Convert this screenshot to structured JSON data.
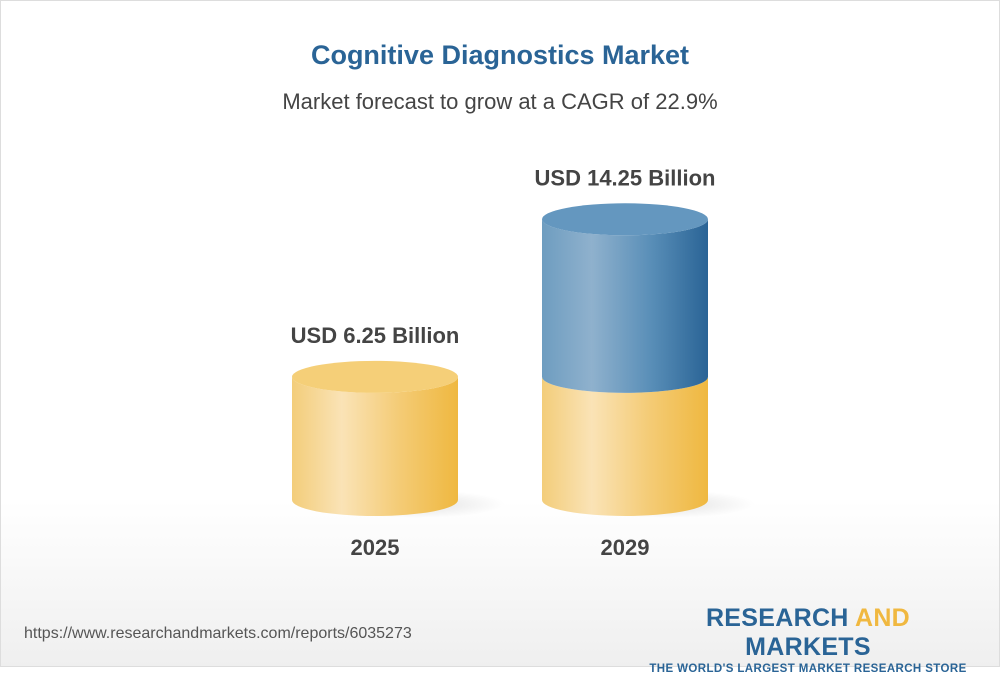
{
  "chart_data": {
    "type": "bar",
    "style": "3d-cylinder",
    "title": "Cognitive Diagnostics Market",
    "subtitle": "Market forecast to grow at a CAGR of 22.9%",
    "categories": [
      "2025",
      "2029"
    ],
    "values": [
      6.25,
      14.25
    ],
    "data_labels": [
      "USD 6.25 Billion",
      "USD 14.25 Billion"
    ],
    "unit": "USD Billion",
    "colors": {
      "base": "#f2c45c",
      "growth": "#2a6496"
    },
    "grid": false,
    "legend": "none"
  },
  "footer": {
    "url": "https://www.researchandmarkets.com/reports/6035273",
    "logo_part1": "RESEARCH ",
    "logo_part2": "AND",
    "logo_part3": " MARKETS",
    "tagline": "THE WORLD'S LARGEST MARKET RESEARCH STORE"
  }
}
